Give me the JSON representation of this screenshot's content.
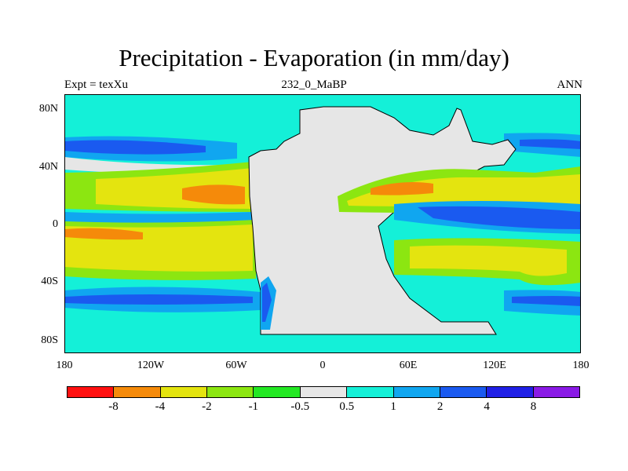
{
  "title": "Precipitation - Evaporation (in mm/day)",
  "subtitle_left": "Expt = texXu",
  "subtitle_center": "232_0_MaBP",
  "subtitle_right": "ANN",
  "y_ticks": [
    "80N",
    "40N",
    "0",
    "40S",
    "80S"
  ],
  "x_ticks": [
    "180",
    "120W",
    "60W",
    "0",
    "60E",
    "120E",
    "180"
  ],
  "colorbar": {
    "colors": [
      "#ff1010",
      "#f58a0a",
      "#e4e40f",
      "#8ce611",
      "#23e823",
      "#e6e6e6",
      "#14f0d8",
      "#10a6f0",
      "#1a5af0",
      "#2020e6",
      "#8a1ae6"
    ],
    "labels": [
      "-8",
      "-4",
      "-2",
      "-1",
      "-0.5",
      "0.5",
      "1",
      "2",
      "4",
      "8"
    ]
  },
  "map": {
    "projection": "cylindrical-equidistant",
    "variable": "P-E",
    "ocean_background": "cyan",
    "land_color": "#e6e6e6"
  }
}
